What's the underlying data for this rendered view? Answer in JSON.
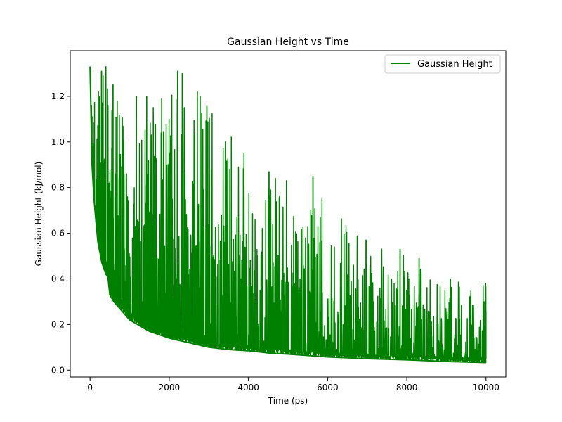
{
  "chart_data": {
    "type": "line",
    "title": "Gaussian Height vs Time",
    "xlabel": "Time (ps)",
    "ylabel": "Gaussian Height (kJ/mol)",
    "xlim": [
      -500,
      10500
    ],
    "ylim": [
      -0.03,
      1.4
    ],
    "x_ticks": [
      0,
      2000,
      4000,
      6000,
      8000,
      10000
    ],
    "x_tick_labels": [
      "0",
      "2000",
      "4000",
      "6000",
      "8000",
      "10000"
    ],
    "y_ticks": [
      0.0,
      0.2,
      0.4,
      0.6,
      0.8,
      1.0,
      1.2
    ],
    "y_tick_labels": [
      "0.0",
      "0.2",
      "0.4",
      "0.6",
      "0.8",
      "1.0",
      "1.2"
    ],
    "grid": false,
    "legend": {
      "position": "top-right",
      "entries": [
        {
          "label": "Gaussian Height",
          "color": "#008000"
        }
      ]
    },
    "series": [
      {
        "name": "Gaussian Height",
        "color": "#008000",
        "x": [
          0,
          50,
          100,
          150,
          200,
          300,
          400,
          450,
          500,
          600,
          800,
          1000,
          1200,
          1500,
          2000,
          2500,
          3000,
          3500,
          4000,
          4500,
          5000,
          6000,
          7000,
          8000,
          9000,
          10000
        ],
        "lower_envelope": [
          1.33,
          0.9,
          0.75,
          0.65,
          0.56,
          0.47,
          0.42,
          0.41,
          0.33,
          0.3,
          0.26,
          0.22,
          0.2,
          0.17,
          0.14,
          0.12,
          0.1,
          0.09,
          0.085,
          0.075,
          0.07,
          0.058,
          0.05,
          0.045,
          0.038,
          0.033
        ],
        "upper_envelope": [
          1.33,
          1.3,
          1.25,
          1.28,
          1.31,
          1.32,
          1.33,
          1.31,
          1.28,
          1.2,
          1.15,
          1.1,
          1.05,
          1.2,
          1.25,
          1.3,
          1.2,
          1.05,
          0.95,
          0.86,
          0.82,
          0.78,
          0.55,
          0.5,
          0.4,
          0.38
        ],
        "peaks": [
          {
            "x": 0,
            "y": 1.33
          },
          {
            "x": 290,
            "y": 1.31
          },
          {
            "x": 400,
            "y": 1.33
          },
          {
            "x": 580,
            "y": 1.25
          },
          {
            "x": 1170,
            "y": 1.2
          },
          {
            "x": 1430,
            "y": 1.2
          },
          {
            "x": 1810,
            "y": 1.19
          },
          {
            "x": 2210,
            "y": 1.31
          },
          {
            "x": 2330,
            "y": 1.3
          },
          {
            "x": 2780,
            "y": 1.2
          },
          {
            "x": 2950,
            "y": 1.16
          },
          {
            "x": 3420,
            "y": 1.0
          },
          {
            "x": 4520,
            "y": 0.87
          },
          {
            "x": 4960,
            "y": 0.83
          },
          {
            "x": 5630,
            "y": 0.85
          },
          {
            "x": 6970,
            "y": 0.57
          },
          {
            "x": 7830,
            "y": 0.53
          },
          {
            "x": 8310,
            "y": 0.49
          },
          {
            "x": 9100,
            "y": 0.4
          },
          {
            "x": 9990,
            "y": 0.38
          }
        ],
        "final": {
          "x": 10000,
          "y": 0.26
        }
      }
    ]
  }
}
